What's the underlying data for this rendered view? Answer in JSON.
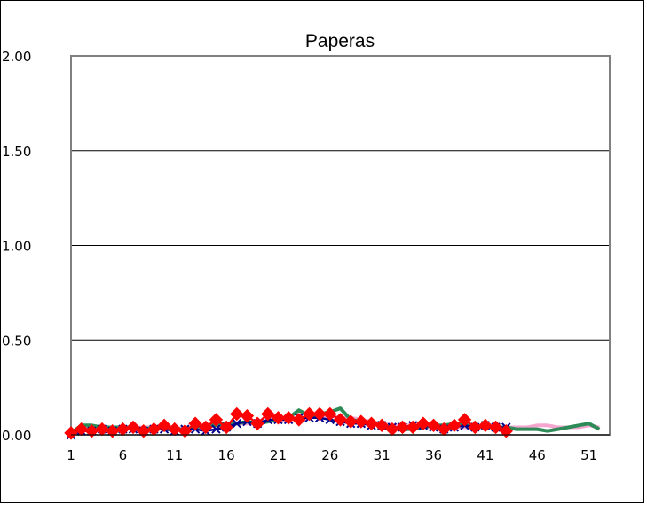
{
  "chart_data": {
    "type": "line",
    "title": "Paperas",
    "xlabel": "",
    "ylabel": "",
    "ylim": [
      0,
      2.0
    ],
    "yticks": [
      "0.00",
      "0.50",
      "1.00",
      "1.50",
      "2.00"
    ],
    "ytick_values": [
      0,
      0.5,
      1.0,
      1.5,
      2.0
    ],
    "xlim": [
      1,
      53
    ],
    "xticks": [
      "1",
      "6",
      "11",
      "16",
      "21",
      "26",
      "31",
      "36",
      "41",
      "46",
      "51"
    ],
    "xtick_values": [
      1,
      6,
      11,
      16,
      21,
      26,
      31,
      36,
      41,
      46,
      51
    ],
    "grid": true,
    "series": [
      {
        "color": "#f4a6cf",
        "marker": "none",
        "x": [
          1,
          2,
          3,
          4,
          5,
          6,
          7,
          8,
          9,
          10,
          11,
          12,
          13,
          14,
          15,
          16,
          17,
          18,
          19,
          20,
          21,
          22,
          23,
          24,
          25,
          26,
          27,
          28,
          29,
          30,
          31,
          32,
          33,
          34,
          35,
          36,
          37,
          38,
          39,
          40,
          41,
          42,
          43,
          44,
          45,
          46,
          47,
          48,
          49,
          50,
          51,
          52
        ],
        "values": [
          0.02,
          0.03,
          0.03,
          0.03,
          0.04,
          0.03,
          0.04,
          0.04,
          0.04,
          0.04,
          0.04,
          0.03,
          0.04,
          0.04,
          0.05,
          0.05,
          0.06,
          0.06,
          0.07,
          0.07,
          0.08,
          0.08,
          0.09,
          0.09,
          0.1,
          0.1,
          0.09,
          0.09,
          0.08,
          0.07,
          0.06,
          0.05,
          0.05,
          0.05,
          0.04,
          0.04,
          0.05,
          0.04,
          0.04,
          0.04,
          0.04,
          0.04,
          0.04,
          0.04,
          0.04,
          0.05,
          0.05,
          0.04,
          0.04,
          0.04,
          0.05,
          0.04
        ]
      },
      {
        "color": "#2e8b57",
        "marker": "none",
        "x": [
          1,
          2,
          3,
          4,
          5,
          6,
          7,
          8,
          9,
          10,
          11,
          12,
          13,
          14,
          15,
          16,
          17,
          18,
          19,
          20,
          21,
          22,
          23,
          24,
          25,
          26,
          27,
          28,
          29,
          30,
          31,
          32,
          33,
          34,
          35,
          36,
          37,
          38,
          39,
          40,
          41,
          42,
          43,
          44,
          45,
          46,
          47,
          48,
          49,
          50,
          51,
          52
        ],
        "values": [
          0.01,
          0.05,
          0.05,
          0.04,
          0.04,
          0.04,
          0.04,
          0.03,
          0.04,
          0.04,
          0.03,
          0.03,
          0.04,
          0.05,
          0.05,
          0.06,
          0.06,
          0.07,
          0.06,
          0.07,
          0.08,
          0.09,
          0.13,
          0.1,
          0.11,
          0.12,
          0.14,
          0.08,
          0.07,
          0.06,
          0.05,
          0.04,
          0.03,
          0.03,
          0.04,
          0.05,
          0.05,
          0.06,
          0.05,
          0.05,
          0.04,
          0.04,
          0.04,
          0.03,
          0.03,
          0.03,
          0.02,
          0.03,
          0.04,
          0.05,
          0.06,
          0.03
        ]
      },
      {
        "color": "#00008b",
        "marker": "x",
        "x": [
          1,
          2,
          3,
          4,
          5,
          6,
          7,
          8,
          9,
          10,
          11,
          12,
          13,
          14,
          15,
          16,
          17,
          18,
          19,
          20,
          21,
          22,
          23,
          24,
          25,
          26,
          27,
          28,
          29,
          30,
          31,
          32,
          33,
          34,
          35,
          36,
          37,
          38,
          39,
          40,
          41,
          42,
          43
        ],
        "values": [
          0.0,
          0.02,
          0.02,
          0.03,
          0.02,
          0.03,
          0.03,
          0.02,
          0.03,
          0.03,
          0.02,
          0.03,
          0.03,
          0.02,
          0.03,
          0.04,
          0.06,
          0.07,
          0.06,
          0.08,
          0.08,
          0.08,
          0.09,
          0.09,
          0.09,
          0.08,
          0.07,
          0.06,
          0.06,
          0.05,
          0.05,
          0.04,
          0.04,
          0.05,
          0.05,
          0.04,
          0.03,
          0.04,
          0.05,
          0.04,
          0.05,
          0.04,
          0.04
        ]
      },
      {
        "color": "#ff0000",
        "marker": "diamond",
        "x": [
          1,
          2,
          3,
          4,
          5,
          6,
          7,
          8,
          9,
          10,
          11,
          12,
          13,
          14,
          15,
          16,
          17,
          18,
          19,
          20,
          21,
          22,
          23,
          24,
          25,
          26,
          27,
          28,
          29,
          30,
          31,
          32,
          33,
          34,
          35,
          36,
          37,
          38,
          39,
          40,
          41,
          42,
          43
        ],
        "values": [
          0.01,
          0.03,
          0.02,
          0.03,
          0.02,
          0.03,
          0.04,
          0.02,
          0.03,
          0.05,
          0.03,
          0.02,
          0.06,
          0.04,
          0.08,
          0.04,
          0.11,
          0.1,
          0.06,
          0.11,
          0.09,
          0.09,
          0.08,
          0.11,
          0.11,
          0.11,
          0.08,
          0.07,
          0.07,
          0.06,
          0.05,
          0.03,
          0.04,
          0.04,
          0.06,
          0.05,
          0.03,
          0.05,
          0.08,
          0.04,
          0.05,
          0.04,
          0.02
        ]
      }
    ]
  }
}
